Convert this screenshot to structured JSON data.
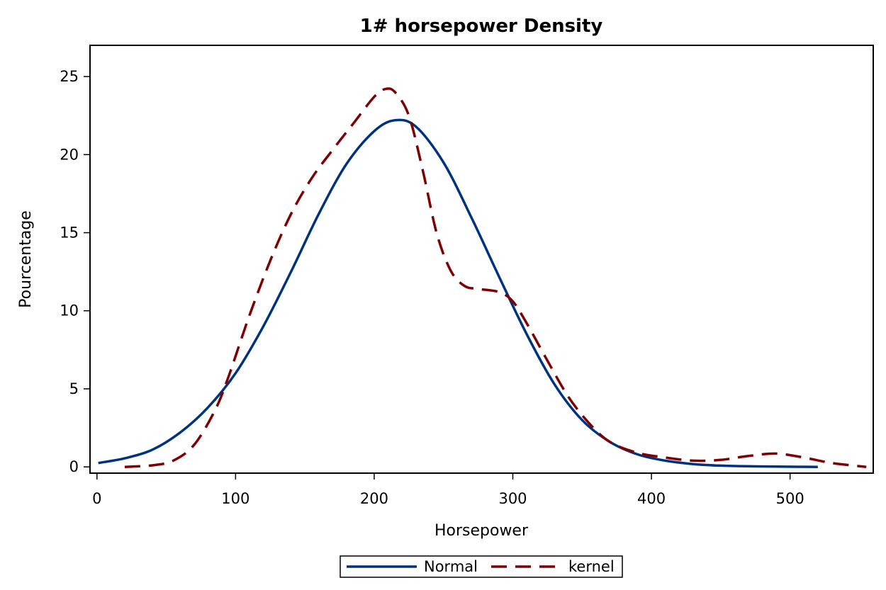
{
  "chart_data": {
    "type": "line",
    "title": "1# horsepower Density",
    "xlabel": "Horsepower",
    "ylabel": "Pourcentage",
    "xlim": [
      -5,
      560
    ],
    "ylim": [
      -0.4,
      27
    ],
    "xticks": [
      "0",
      "100",
      "200",
      "300",
      "400",
      "500"
    ],
    "yticks": [
      "0",
      "5",
      "10",
      "15",
      "20",
      "25"
    ],
    "grid": false,
    "legend_position": "bottom",
    "series": [
      {
        "name": "Normal",
        "style": "solid",
        "color": "#00337f",
        "x": [
          1,
          20,
          40,
          60,
          80,
          100,
          120,
          140,
          160,
          180,
          200,
          215,
          230,
          250,
          270,
          290,
          310,
          330,
          350,
          370,
          390,
          410,
          430,
          450,
          470,
          490,
          520
        ],
        "y": [
          0.25,
          0.55,
          1.1,
          2.2,
          3.8,
          6.0,
          9.0,
          12.5,
          16.2,
          19.4,
          21.5,
          22.2,
          21.8,
          19.5,
          16.0,
          12.2,
          8.5,
          5.3,
          3.0,
          1.6,
          0.8,
          0.4,
          0.18,
          0.08,
          0.04,
          0.02,
          0.0
        ]
      },
      {
        "name": "kernel",
        "style": "dashed",
        "color": "#7f0000",
        "x": [
          20,
          40,
          55,
          70,
          85,
          95,
          110,
          125,
          140,
          155,
          170,
          185,
          200,
          208,
          215,
          225,
          235,
          245,
          255,
          265,
          275,
          290,
          300,
          310,
          325,
          340,
          355,
          370,
          390,
          410,
          430,
          450,
          470,
          490,
          510,
          530,
          555
        ],
        "y": [
          0.0,
          0.1,
          0.4,
          1.4,
          3.6,
          5.8,
          9.7,
          13.2,
          16.2,
          18.5,
          20.3,
          22.0,
          23.7,
          24.2,
          24.0,
          22.5,
          19.0,
          15.0,
          12.6,
          11.6,
          11.4,
          11.2,
          10.6,
          9.2,
          6.8,
          4.5,
          2.8,
          1.6,
          0.9,
          0.6,
          0.4,
          0.45,
          0.7,
          0.85,
          0.6,
          0.25,
          0.0
        ]
      }
    ]
  }
}
